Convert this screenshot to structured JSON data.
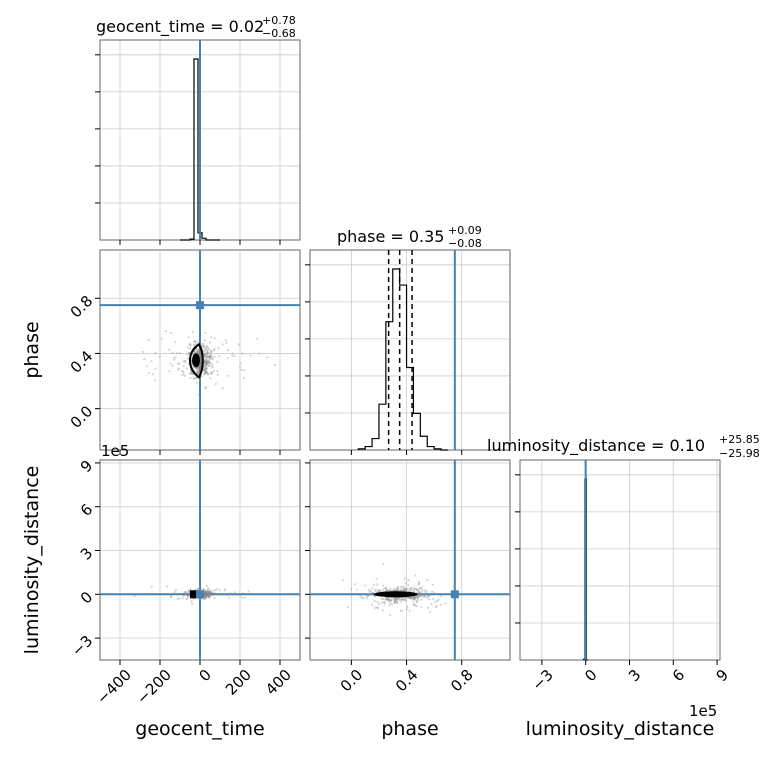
{
  "chart_data": {
    "type": "corner",
    "parameters": [
      "geocent_time",
      "phase",
      "luminosity_distance"
    ],
    "titles": {
      "geocent_time": {
        "label": "geocent_time",
        "median": "0.02",
        "plus": "+0.78",
        "minus": "−0.68"
      },
      "phase": {
        "label": "phase",
        "median": "0.35",
        "plus": "+0.09",
        "minus": "−0.08"
      },
      "luminosity_distance": {
        "label": "luminosity_distance",
        "median": "0.10",
        "plus": "+25.85",
        "minus": "−25.98"
      }
    },
    "axes": {
      "geocent_time": {
        "range": [
          -500,
          500
        ],
        "ticks": [
          -400,
          -200,
          0,
          200,
          400
        ],
        "tick_labels": [
          "−400",
          "−200",
          "0",
          "200",
          "400"
        ]
      },
      "phase": {
        "range": [
          -0.3,
          1.15
        ],
        "ticks": [
          0.0,
          0.4,
          0.8
        ],
        "tick_labels": [
          "0.0",
          "0.4",
          "0.8"
        ]
      },
      "luminosity_distance": {
        "range": [
          -450000,
          920000
        ],
        "ticks": [
          -300000,
          0,
          300000,
          600000,
          900000
        ],
        "tick_labels": [
          "−3",
          "0",
          "3",
          "6",
          "9"
        ],
        "offset_label": "1e5"
      }
    },
    "truth": {
      "geocent_time": 0,
      "phase": 0.75,
      "luminosity_distance": 0
    },
    "histograms": {
      "geocent_time": {
        "bin_edges": [
          -100,
          -50,
          -30,
          -10,
          10,
          30,
          60,
          100
        ],
        "counts": [
          0,
          0.005,
          1,
          0.04,
          0.01,
          0,
          0
        ]
      },
      "phase": {
        "bin_edges": [
          0.05,
          0.1,
          0.15,
          0.2,
          0.25,
          0.3,
          0.35,
          0.4,
          0.45,
          0.5,
          0.55,
          0.6,
          0.65,
          0.7
        ],
        "counts": [
          0.005,
          0.015,
          0.05,
          0.2,
          0.56,
          0.79,
          0.72,
          0.36,
          0.16,
          0.06,
          0.015,
          0.005,
          0
        ]
      },
      "luminosity_distance": {
        "bin_edges": [
          -15000,
          -5000,
          5000,
          15000
        ],
        "counts": [
          0.002,
          0.58,
          0
        ]
      }
    },
    "quantiles": {
      "geocent_time": [
        -0.66,
        0.02,
        0.8
      ],
      "phase": [
        0.27,
        0.35,
        0.44
      ],
      "luminosity_distance": [
        -25.9,
        0.1,
        25.95
      ]
    },
    "grid": true
  }
}
